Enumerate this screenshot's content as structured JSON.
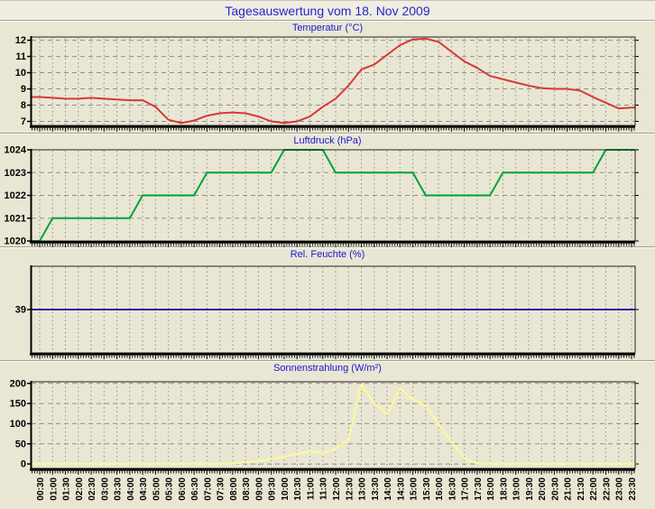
{
  "page_title": "Tagesauswertung vom 18. Nov 2009",
  "colors": {
    "page_bg": "#e9e7d3",
    "header_bg": "#f0ede2",
    "plot_bg": "#e9e7d3",
    "title_text": "#2626cc",
    "chart_title_text": "#1a16d6",
    "grid": "#8f8f8f",
    "axis": "#000000",
    "separator": "#a09e93",
    "temperature_line": "#d83838",
    "pressure_line": "#00a23a",
    "humidity_line": "#2525b0",
    "radiation_line": "#fbfa9c"
  },
  "x_axis": {
    "first_label": "00:30",
    "last_label": "23:30",
    "step_minutes": 30
  },
  "chart_data": [
    {
      "type": "line",
      "id": "temperature",
      "title": "Temperatur (°C)",
      "color": "#d83838",
      "ylim": [
        6.75,
        12.2
      ],
      "yticks": [
        7,
        8,
        9,
        10,
        11,
        12
      ],
      "grid": "on",
      "categories": [
        "00:30",
        "01:00",
        "01:30",
        "02:00",
        "02:30",
        "03:00",
        "03:30",
        "04:00",
        "04:30",
        "05:00",
        "05:30",
        "06:00",
        "06:30",
        "07:00",
        "07:30",
        "08:00",
        "08:30",
        "09:00",
        "09:30",
        "10:00",
        "10:30",
        "11:00",
        "11:30",
        "12:00",
        "12:30",
        "13:00",
        "13:30",
        "14:00",
        "14:30",
        "15:00",
        "15:30",
        "16:00",
        "16:30",
        "17:00",
        "17:30",
        "18:00",
        "18:30",
        "19:00",
        "19:30",
        "20:00",
        "20:30",
        "21:00",
        "21:30",
        "22:00",
        "22:30",
        "23:00",
        "23:30"
      ],
      "values": [
        8.5,
        8.45,
        8.4,
        8.4,
        8.45,
        8.4,
        8.35,
        8.3,
        8.3,
        7.9,
        7.1,
        6.9,
        7.05,
        7.35,
        7.5,
        7.55,
        7.5,
        7.3,
        7.0,
        6.9,
        7.0,
        7.3,
        7.9,
        8.4,
        9.2,
        10.2,
        10.5,
        11.1,
        11.7,
        12.05,
        12.1,
        11.9,
        11.3,
        10.7,
        10.3,
        9.8,
        9.6,
        9.4,
        9.2,
        9.05,
        9.0,
        9.0,
        8.9,
        8.5,
        8.15,
        7.8,
        7.85
      ]
    },
    {
      "type": "line",
      "id": "pressure",
      "title": "Luftdruck (hPa)",
      "color": "#00a23a",
      "ylim": [
        1020,
        1024
      ],
      "yticks": [
        1020,
        1021,
        1022,
        1023,
        1024
      ],
      "grid": "on",
      "categories": [
        "00:30",
        "01:00",
        "01:30",
        "02:00",
        "02:30",
        "03:00",
        "03:30",
        "04:00",
        "04:30",
        "05:00",
        "05:30",
        "06:00",
        "06:30",
        "07:00",
        "07:30",
        "08:00",
        "08:30",
        "09:00",
        "09:30",
        "10:00",
        "10:30",
        "11:00",
        "11:30",
        "12:00",
        "12:30",
        "13:00",
        "13:30",
        "14:00",
        "14:30",
        "15:00",
        "15:30",
        "16:00",
        "16:30",
        "17:00",
        "17:30",
        "18:00",
        "18:30",
        "19:00",
        "19:30",
        "20:00",
        "20:30",
        "21:00",
        "21:30",
        "22:00",
        "22:30",
        "23:00",
        "23:30"
      ],
      "values": [
        1020,
        1021,
        1021,
        1021,
        1021,
        1021,
        1021,
        1021,
        1022,
        1022,
        1022,
        1022,
        1022,
        1023,
        1023,
        1023,
        1023,
        1023,
        1023,
        1024,
        1024,
        1024,
        1024,
        1023,
        1023,
        1023,
        1023,
        1023,
        1023,
        1023,
        1022,
        1022,
        1022,
        1022,
        1022,
        1022,
        1023,
        1023,
        1023,
        1023,
        1023,
        1023,
        1023,
        1023,
        1024,
        1024,
        1024
      ]
    },
    {
      "type": "line",
      "id": "humidity",
      "title": "Rel. Feuchte (%)",
      "color": "#2525b0",
      "ylim": [
        34,
        44
      ],
      "yticks": [
        39
      ],
      "grid": "on",
      "categories": [
        "00:30",
        "01:00",
        "01:30",
        "02:00",
        "02:30",
        "03:00",
        "03:30",
        "04:00",
        "04:30",
        "05:00",
        "05:30",
        "06:00",
        "06:30",
        "07:00",
        "07:30",
        "08:00",
        "08:30",
        "09:00",
        "09:30",
        "10:00",
        "10:30",
        "11:00",
        "11:30",
        "12:00",
        "12:30",
        "13:00",
        "13:30",
        "14:00",
        "14:30",
        "15:00",
        "15:30",
        "16:00",
        "16:30",
        "17:00",
        "17:30",
        "18:00",
        "18:30",
        "19:00",
        "19:30",
        "20:00",
        "20:30",
        "21:00",
        "21:30",
        "22:00",
        "22:30",
        "23:00",
        "23:30"
      ],
      "values": [
        39,
        39,
        39,
        39,
        39,
        39,
        39,
        39,
        39,
        39,
        39,
        39,
        39,
        39,
        39,
        39,
        39,
        39,
        39,
        39,
        39,
        39,
        39,
        39,
        39,
        39,
        39,
        39,
        39,
        39,
        39,
        39,
        39,
        39,
        39,
        39,
        39,
        39,
        39,
        39,
        39,
        39,
        39,
        39,
        39,
        39,
        39
      ]
    },
    {
      "type": "line",
      "id": "radiation",
      "title": "Sonnenstrahlung (W/m²)",
      "color": "#fbfa9c",
      "ylim": [
        -11,
        204
      ],
      "yticks": [
        0,
        50,
        100,
        150,
        200
      ],
      "grid": "on",
      "categories": [
        "00:30",
        "01:00",
        "01:30",
        "02:00",
        "02:30",
        "03:00",
        "03:30",
        "04:00",
        "04:30",
        "05:00",
        "05:30",
        "06:00",
        "06:30",
        "07:00",
        "07:30",
        "08:00",
        "08:30",
        "09:00",
        "09:30",
        "10:00",
        "10:30",
        "11:00",
        "11:30",
        "12:00",
        "12:30",
        "13:00",
        "13:30",
        "14:00",
        "14:30",
        "15:00",
        "15:30",
        "16:00",
        "16:30",
        "17:00",
        "17:30",
        "18:00",
        "18:30",
        "19:00",
        "19:30",
        "20:00",
        "20:30",
        "21:00",
        "21:30",
        "22:00",
        "22:30",
        "23:00",
        "23:30"
      ],
      "values": [
        0,
        0,
        0,
        0,
        0,
        0,
        0,
        0,
        0,
        0,
        0,
        0,
        0,
        0,
        0,
        1,
        4,
        8,
        12,
        18,
        26,
        31,
        27,
        38,
        60,
        197,
        150,
        124,
        188,
        160,
        145,
        100,
        55,
        14,
        1,
        0,
        0,
        0,
        0,
        0,
        0,
        0,
        0,
        0,
        0,
        0,
        0
      ]
    }
  ]
}
